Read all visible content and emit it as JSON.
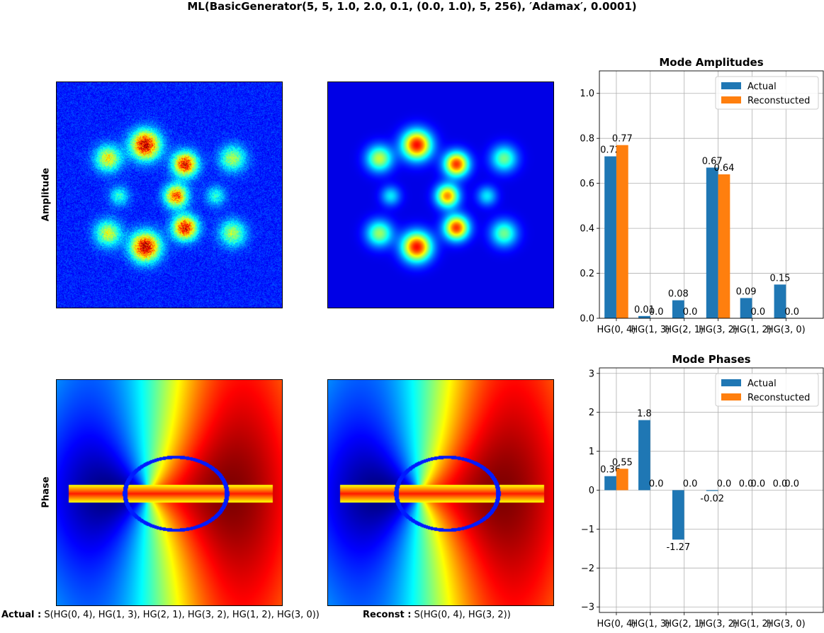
{
  "suptitle": "ML(BasicGenerator(5, 5, 1.0, 2.0, 0.1, (0.0, 1.0), 5, 256), ′Adamax′, 0.0001)",
  "row_labels": {
    "amplitude": "Amplitude",
    "phase": "Phase"
  },
  "captions": {
    "actual_label": "Actual :",
    "actual_value": "S(HG(0, 4), HG(1, 3), HG(2, 1), HG(3, 2), HG(1, 2), HG(3, 0))",
    "reconst_label": "Reconst :",
    "reconst_value": "S(HG(0, 4), HG(3, 2))"
  },
  "colors": {
    "actual": "#1f77b4",
    "reconstructed": "#ff7f0e",
    "grid": "#b0b0b0"
  },
  "colormap": "jet",
  "chart_data": [
    {
      "type": "bar",
      "title": "Mode Amplitudes",
      "categories": [
        "HG(0, 4)",
        "HG(1, 3)",
        "HG(2, 1)",
        "HG(3, 2)",
        "HG(1, 2)",
        "HG(3, 0)"
      ],
      "series": [
        {
          "name": "Actual",
          "values": [
            0.72,
            0.01,
            0.08,
            0.67,
            0.09,
            0.15
          ]
        },
        {
          "name": "Reconstucted",
          "values": [
            0.77,
            0.0,
            0.0,
            0.64,
            0.0,
            0.0
          ]
        }
      ],
      "data_labels": [
        [
          "0.72",
          "0.01",
          "0.08",
          "0.67",
          "0.09",
          "0.15"
        ],
        [
          "0.77",
          "0.0",
          "0.0",
          "0.64",
          "0.0",
          "0.0"
        ]
      ],
      "ylim": [
        0,
        1.1
      ],
      "yticks": [
        "0.0",
        "0.2",
        "0.4",
        "0.6",
        "0.8",
        "1.0"
      ],
      "ytick_values": [
        0,
        0.2,
        0.4,
        0.6,
        0.8,
        1.0
      ],
      "grid": true,
      "legend": "upper-right"
    },
    {
      "type": "bar",
      "title": "Mode Phases",
      "categories": [
        "HG(0, 4)",
        "HG(1, 3)",
        "HG(2, 1)",
        "HG(3, 2)",
        "HG(1, 2)",
        "HG(3, 0)"
      ],
      "series": [
        {
          "name": "Actual",
          "values": [
            0.36,
            1.8,
            -1.27,
            -0.02,
            0.0,
            0.0
          ]
        },
        {
          "name": "Reconstucted",
          "values": [
            0.55,
            0.0,
            0.0,
            0.0,
            0.0,
            0.0
          ]
        }
      ],
      "data_labels": [
        [
          "0.36",
          "1.8",
          "-1.27",
          "-0.02",
          "0.0",
          "0.0"
        ],
        [
          "0.55",
          "0.0",
          "0.0",
          "0.0",
          "0.0",
          "0.0"
        ]
      ],
      "ylim": [
        -3.14159,
        3.14159
      ],
      "yticks": [
        "−3",
        "−2",
        "−1",
        "0",
        "1",
        "2",
        "3"
      ],
      "ytick_values": [
        -3,
        -2,
        -1,
        0,
        1,
        2,
        3
      ],
      "grid": true,
      "legend": "upper-right"
    }
  ]
}
